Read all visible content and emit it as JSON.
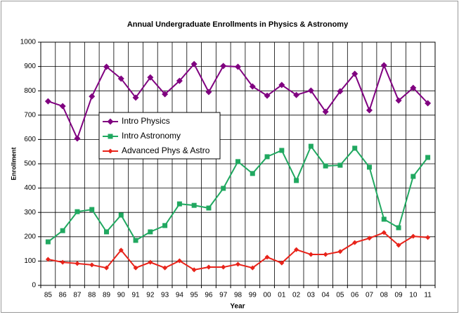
{
  "chart_data": {
    "type": "line",
    "title": "Annual Undergraduate Enrollments in Physics & Astronomy",
    "x_label": "Year",
    "y_label": "Enrollment",
    "categories": [
      "85",
      "86",
      "87",
      "88",
      "89",
      "90",
      "91",
      "92",
      "93",
      "94",
      "95",
      "96",
      "97",
      "98",
      "99",
      "00",
      "01",
      "02",
      "03",
      "04",
      "05",
      "06",
      "07",
      "08",
      "09",
      "10",
      "11"
    ],
    "series": [
      {
        "name": "Intro Physics",
        "color": "#800080",
        "marker": "diamond",
        "values": [
          757,
          737,
          604,
          777,
          899,
          850,
          772,
          855,
          786,
          841,
          910,
          795,
          902,
          899,
          818,
          780,
          824,
          783,
          801,
          714,
          798,
          870,
          720,
          905,
          760,
          812,
          749
        ]
      },
      {
        "name": "Intro Astronomy",
        "color": "#20a860",
        "marker": "square",
        "values": [
          179,
          225,
          303,
          312,
          220,
          289,
          185,
          220,
          246,
          335,
          329,
          318,
          399,
          509,
          460,
          529,
          555,
          431,
          572,
          491,
          494,
          564,
          486,
          272,
          237,
          448,
          526
        ]
      },
      {
        "name": "Advanced Phys & Astro",
        "color": "#e8231a",
        "marker": "diamond",
        "values": [
          107,
          95,
          90,
          84,
          72,
          145,
          72,
          95,
          72,
          101,
          64,
          75,
          75,
          87,
          72,
          116,
          92,
          147,
          127,
          127,
          139,
          176,
          194,
          217,
          165,
          202,
          197
        ]
      }
    ],
    "ylim": [
      0,
      1000
    ],
    "yticks": [
      0,
      100,
      200,
      300,
      400,
      500,
      600,
      700,
      800,
      900,
      1000
    ],
    "grid": true
  }
}
